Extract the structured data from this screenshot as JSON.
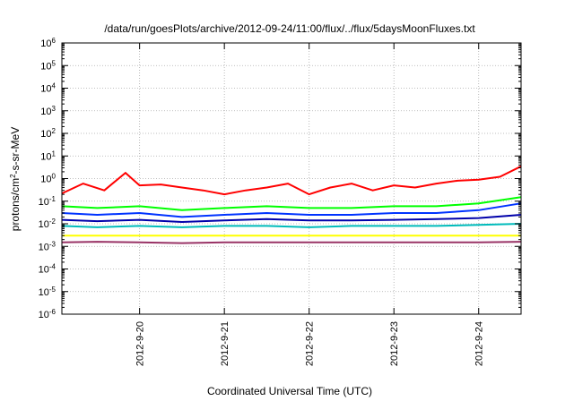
{
  "chart_data": {
    "type": "line",
    "title": "/data/run/goesPlots/archive/2012-09-24/11:00/flux/../flux/5daysMoonFluxes.txt",
    "xlabel": "Coordinated Universal Time (UTC)",
    "ylabel": {
      "prefix": "protons/cm",
      "sup": "2",
      "suffix": "-s-sr-MeV"
    },
    "y_scale": "log",
    "ylim": [
      1e-06,
      1000000.0
    ],
    "y_ticks": [
      {
        "value": 1e-06,
        "base": "10",
        "exp": "-6"
      },
      {
        "value": 1e-05,
        "base": "10",
        "exp": "-5"
      },
      {
        "value": 0.0001,
        "base": "10",
        "exp": "-4"
      },
      {
        "value": 0.001,
        "base": "10",
        "exp": "-3"
      },
      {
        "value": 0.01,
        "base": "10",
        "exp": "-2"
      },
      {
        "value": 0.1,
        "base": "10",
        "exp": "-1"
      },
      {
        "value": 1.0,
        "base": "10",
        "exp": "0"
      },
      {
        "value": 10.0,
        "base": "10",
        "exp": "1"
      },
      {
        "value": 100.0,
        "base": "10",
        "exp": "2"
      },
      {
        "value": 1000.0,
        "base": "10",
        "exp": "3"
      },
      {
        "value": 10000.0,
        "base": "10",
        "exp": "4"
      },
      {
        "value": 100000.0,
        "base": "10",
        "exp": "5"
      },
      {
        "value": 1000000.0,
        "base": "10",
        "exp": "6"
      }
    ],
    "xlim": [
      "2012-09-19T02:00",
      "2012-09-24T12:00"
    ],
    "x_ticks": [
      {
        "label": "2012-9-20",
        "value": "2012-09-20T00:00"
      },
      {
        "label": "2012-9-21",
        "value": "2012-09-21T00:00"
      },
      {
        "label": "2012-9-22",
        "value": "2012-09-22T00:00"
      },
      {
        "label": "2012-9-23",
        "value": "2012-09-23T00:00"
      },
      {
        "label": "2012-9-24",
        "value": "2012-09-24T00:00"
      }
    ],
    "grid": true,
    "series": [
      {
        "color": "#ff0000",
        "x": [
          "2012-09-19T02:00",
          "2012-09-19T08:00",
          "2012-09-19T14:00",
          "2012-09-19T20:00",
          "2012-09-20T00:00",
          "2012-09-20T06:00",
          "2012-09-20T12:00",
          "2012-09-20T18:00",
          "2012-09-21T00:00",
          "2012-09-21T06:00",
          "2012-09-21T12:00",
          "2012-09-21T18:00",
          "2012-09-22T00:00",
          "2012-09-22T06:00",
          "2012-09-22T12:00",
          "2012-09-22T18:00",
          "2012-09-23T00:00",
          "2012-09-23T06:00",
          "2012-09-23T12:00",
          "2012-09-23T18:00",
          "2012-09-24T00:00",
          "2012-09-24T06:00",
          "2012-09-24T12:00"
        ],
        "values": [
          0.22,
          0.6,
          0.3,
          1.8,
          0.5,
          0.55,
          0.4,
          0.3,
          0.2,
          0.3,
          0.4,
          0.6,
          0.2,
          0.4,
          0.6,
          0.3,
          0.5,
          0.4,
          0.6,
          0.8,
          0.9,
          1.2,
          3.5
        ]
      },
      {
        "color": "#00ff00",
        "x": [
          "2012-09-19T02:00",
          "2012-09-19T12:00",
          "2012-09-20T00:00",
          "2012-09-20T12:00",
          "2012-09-21T00:00",
          "2012-09-21T12:00",
          "2012-09-22T00:00",
          "2012-09-22T12:00",
          "2012-09-23T00:00",
          "2012-09-23T12:00",
          "2012-09-24T00:00",
          "2012-09-24T12:00"
        ],
        "values": [
          0.06,
          0.05,
          0.06,
          0.04,
          0.05,
          0.06,
          0.05,
          0.05,
          0.06,
          0.06,
          0.08,
          0.15
        ]
      },
      {
        "color": "#0033ff",
        "x": [
          "2012-09-19T02:00",
          "2012-09-19T12:00",
          "2012-09-20T00:00",
          "2012-09-20T12:00",
          "2012-09-21T00:00",
          "2012-09-21T12:00",
          "2012-09-22T00:00",
          "2012-09-22T12:00",
          "2012-09-23T00:00",
          "2012-09-23T12:00",
          "2012-09-24T00:00",
          "2012-09-24T12:00"
        ],
        "values": [
          0.03,
          0.025,
          0.03,
          0.02,
          0.025,
          0.03,
          0.025,
          0.025,
          0.03,
          0.03,
          0.04,
          0.08
        ]
      },
      {
        "color": "#0000aa",
        "x": [
          "2012-09-19T02:00",
          "2012-09-19T12:00",
          "2012-09-20T00:00",
          "2012-09-20T12:00",
          "2012-09-21T00:00",
          "2012-09-21T12:00",
          "2012-09-22T00:00",
          "2012-09-22T12:00",
          "2012-09-23T00:00",
          "2012-09-23T12:00",
          "2012-09-24T00:00",
          "2012-09-24T12:00"
        ],
        "values": [
          0.015,
          0.013,
          0.015,
          0.012,
          0.014,
          0.016,
          0.014,
          0.014,
          0.015,
          0.016,
          0.018,
          0.025
        ]
      },
      {
        "color": "#00bbbb",
        "x": [
          "2012-09-19T02:00",
          "2012-09-19T12:00",
          "2012-09-20T00:00",
          "2012-09-20T12:00",
          "2012-09-21T00:00",
          "2012-09-21T12:00",
          "2012-09-22T00:00",
          "2012-09-22T12:00",
          "2012-09-23T00:00",
          "2012-09-23T12:00",
          "2012-09-24T00:00",
          "2012-09-24T12:00"
        ],
        "values": [
          0.008,
          0.007,
          0.008,
          0.007,
          0.008,
          0.008,
          0.007,
          0.008,
          0.008,
          0.008,
          0.009,
          0.01
        ]
      },
      {
        "color": "#ffff00",
        "x": [
          "2012-09-19T02:00",
          "2012-09-20T00:00",
          "2012-09-21T00:00",
          "2012-09-22T00:00",
          "2012-09-23T00:00",
          "2012-09-24T00:00",
          "2012-09-24T12:00"
        ],
        "values": [
          0.003,
          0.003,
          0.003,
          0.003,
          0.003,
          0.003,
          0.003
        ]
      },
      {
        "color": "#993366",
        "x": [
          "2012-09-19T02:00",
          "2012-09-19T12:00",
          "2012-09-20T00:00",
          "2012-09-20T12:00",
          "2012-09-21T00:00",
          "2012-09-21T12:00",
          "2012-09-22T00:00",
          "2012-09-22T12:00",
          "2012-09-23T00:00",
          "2012-09-23T12:00",
          "2012-09-24T00:00",
          "2012-09-24T12:00"
        ],
        "values": [
          0.0015,
          0.0016,
          0.0015,
          0.0014,
          0.0015,
          0.0015,
          0.0015,
          0.0015,
          0.0015,
          0.0015,
          0.0015,
          0.0016
        ]
      }
    ]
  }
}
